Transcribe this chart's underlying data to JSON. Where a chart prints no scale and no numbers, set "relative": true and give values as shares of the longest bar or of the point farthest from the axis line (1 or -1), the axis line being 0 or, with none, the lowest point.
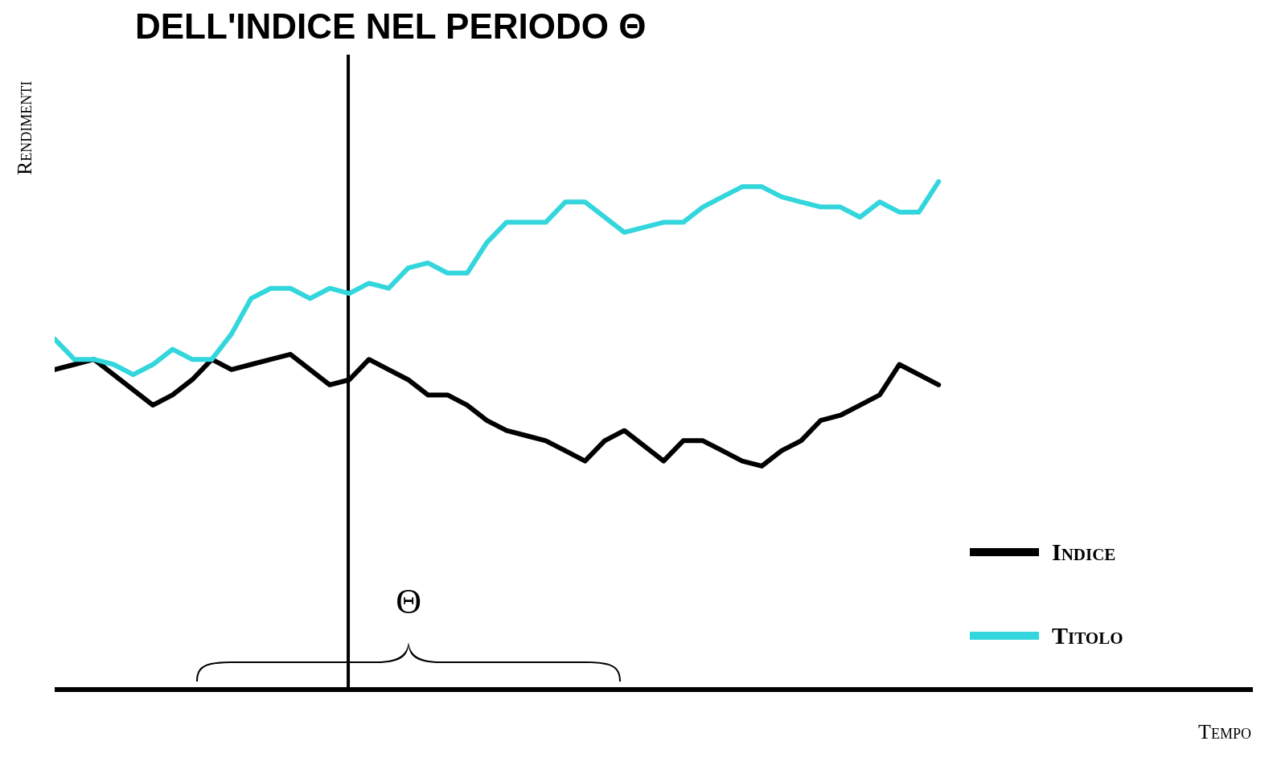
{
  "chart_data": {
    "type": "line",
    "title": "DELL'INDICE NEL PERIODO Θ",
    "xlabel": "Tempo",
    "ylabel": "Rendimenti",
    "relative": true,
    "categories": [
      null,
      null,
      null,
      null,
      null,
      null,
      null,
      null,
      null,
      null,
      null,
      null,
      null,
      null,
      null,
      null,
      null,
      null,
      null,
      null,
      null,
      null,
      null,
      null,
      null,
      null,
      null,
      null,
      null,
      null,
      null,
      null,
      null,
      null,
      null,
      null,
      null,
      null,
      null,
      null,
      null,
      null,
      null,
      null,
      null,
      null,
      null,
      null,
      null,
      null,
      null,
      null,
      null,
      null,
      null,
      null,
      null,
      null,
      null,
      null,
      null,
      null
    ],
    "series": [
      {
        "name": "Indice",
        "color": "#000000",
        "values": [
          0.63,
          0.64,
          0.65,
          0.62,
          0.59,
          0.56,
          0.58,
          0.61,
          0.65,
          0.63,
          0.64,
          0.65,
          0.66,
          0.63,
          0.6,
          0.61,
          0.65,
          0.63,
          0.61,
          0.58,
          0.58,
          0.56,
          0.53,
          0.51,
          0.5,
          0.49,
          0.47,
          0.45,
          0.49,
          0.51,
          0.48,
          0.45,
          0.49,
          0.49,
          0.47,
          0.45,
          0.44,
          0.47,
          0.49,
          0.53,
          0.54,
          0.56,
          0.58,
          0.64,
          0.62,
          0.6,
          null,
          null,
          null,
          null,
          null,
          null,
          null,
          null,
          null,
          null,
          null,
          null,
          null,
          null,
          null,
          null
        ]
      },
      {
        "name": "Titolo",
        "color": "#33d6dc",
        "values": [
          0.69,
          0.65,
          0.65,
          0.64,
          0.62,
          0.64,
          0.67,
          0.65,
          0.65,
          0.7,
          0.77,
          0.79,
          0.79,
          0.77,
          0.79,
          0.78,
          0.8,
          0.79,
          0.83,
          0.84,
          0.82,
          0.82,
          0.88,
          0.92,
          0.92,
          0.92,
          0.96,
          0.96,
          0.93,
          0.9,
          0.91,
          0.92,
          0.92,
          0.95,
          0.97,
          0.99,
          0.99,
          0.97,
          0.96,
          0.95,
          0.95,
          0.93,
          0.96,
          0.94,
          0.94,
          1,
          null,
          null,
          null,
          null,
          null,
          null,
          null,
          null,
          null,
          null,
          null,
          null,
          null,
          null,
          null,
          null
        ]
      }
    ],
    "annotations": [
      "Θ"
    ],
    "legend": "bottom right",
    "grid": false,
    "marker": "none",
    "line_style": "solid"
  }
}
